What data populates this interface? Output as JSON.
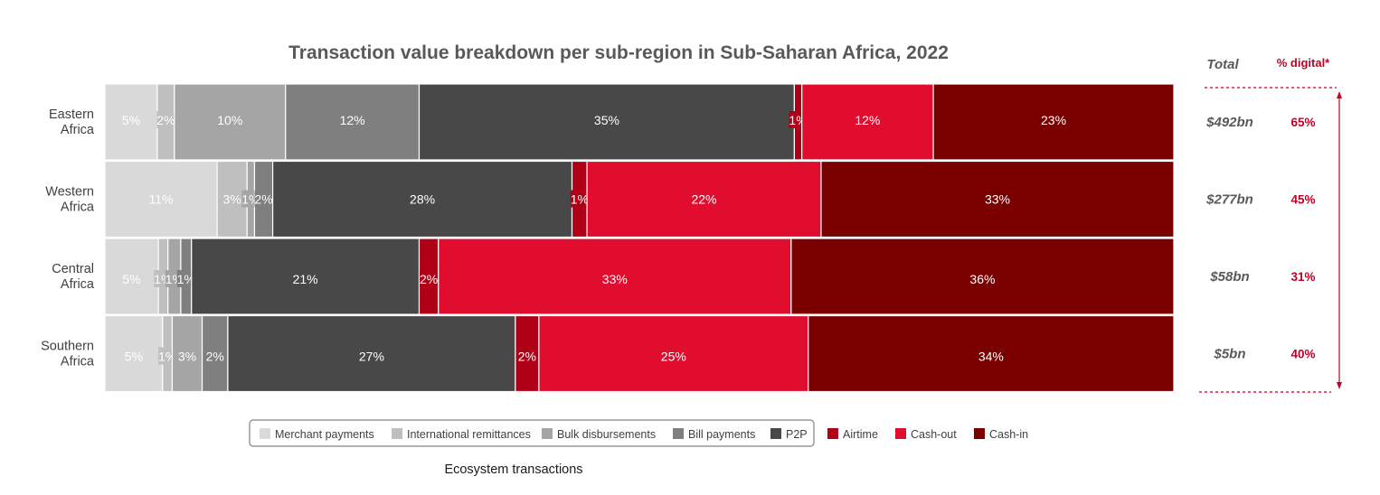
{
  "chart_data": {
    "type": "bar",
    "orientation": "horizontal",
    "stacked": true,
    "normalized": true,
    "title": "Transaction value breakdown per sub-region in Sub-Saharan Africa, 2022",
    "categories": [
      [
        "Eastern",
        "Africa"
      ],
      [
        "Western",
        "Africa"
      ],
      [
        "Central",
        "Africa"
      ],
      [
        "Southern",
        "Africa"
      ]
    ],
    "series": [
      {
        "name": "Merchant payments",
        "color": "#d9d9d9",
        "labels": [
          "5%",
          "11%",
          "5%",
          "5%"
        ],
        "values": [
          4.9,
          10.5,
          5,
          5.4
        ]
      },
      {
        "name": "International remittances",
        "color": "#bfbfbf",
        "labels": [
          "2%",
          "3%",
          "1%",
          "1%"
        ],
        "values": [
          1.6,
          2.8,
          0.9,
          0.9
        ]
      },
      {
        "name": "Bulk disbursements",
        "color": "#a5a5a5",
        "labels": [
          "10%",
          "1%",
          "1%",
          "3%"
        ],
        "values": [
          10.4,
          0.7,
          1.2,
          2.8
        ]
      },
      {
        "name": "Bill payments",
        "color": "#7f7f7f",
        "labels": [
          "12%",
          "2%",
          "1%",
          "2%"
        ],
        "values": [
          12.5,
          1.7,
          1,
          2.4
        ]
      },
      {
        "name": "P2P",
        "color": "#484848",
        "labels": [
          "35%",
          "28%",
          "21%",
          "27%"
        ],
        "values": [
          35.1,
          28,
          21.3,
          26.9
        ]
      },
      {
        "name": "Airtime",
        "color": "#b00017",
        "labels": [
          "1%",
          "1%",
          "2%",
          "2%"
        ],
        "values": [
          0.7,
          1.4,
          1.8,
          2.2
        ]
      },
      {
        "name": "Cash-out",
        "color": "#e00d2e",
        "labels": [
          "12%",
          "22%",
          "33%",
          "25%"
        ],
        "values": [
          12.3,
          21.9,
          33,
          25.2
        ]
      },
      {
        "name": "Cash-in",
        "color": "#7a0000",
        "labels": [
          "23%",
          "33%",
          "36%",
          "34%"
        ],
        "values": [
          22.5,
          33,
          35.8,
          34.2
        ]
      }
    ],
    "legend_position": "bottom",
    "legend_title": "Ecosystem transactions",
    "totals_header": "Total",
    "digital_header": "% digital*",
    "totals": [
      "$492bn",
      "$277bn",
      "$58bn",
      "$5bn"
    ],
    "digital": [
      "65%",
      "45%",
      "31%",
      "40%"
    ]
  }
}
